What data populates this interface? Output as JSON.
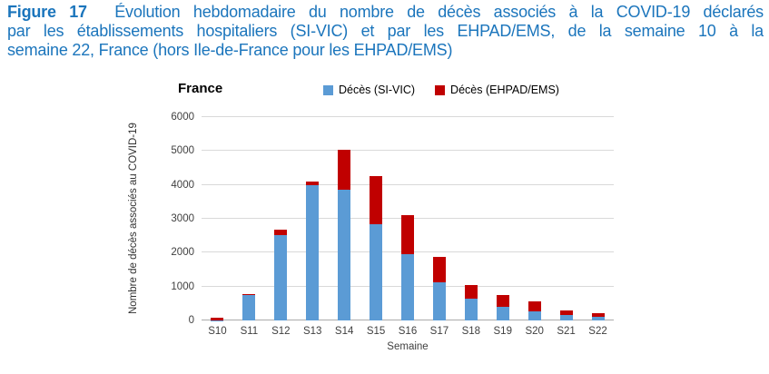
{
  "figure": {
    "label": "Figure 17",
    "line1": "Évolution hebdomadaire du nombre de décès associés à la COVID-19 déclarés",
    "line2": "par les établissements hospitaliers (SI-VIC) et par les EHPAD/EMS, de la semaine 10 à la",
    "line3": "semaine 22, France (hors Ile-de-France pour les EHPAD/EMS)"
  },
  "colors": {
    "caption_text": "#1B75BC",
    "bar_blue": "#5B9BD5",
    "bar_red": "#C00000",
    "gridline": "#D9D9D9"
  },
  "chart_data": {
    "type": "bar",
    "stacked": true,
    "title": "France",
    "xlabel": "Semaine",
    "ylabel": "Nombre de décès associés au COVID-19",
    "categories": [
      "S10",
      "S11",
      "S12",
      "S13",
      "S14",
      "S15",
      "S16",
      "S17",
      "S18",
      "S19",
      "S20",
      "S21",
      "S22"
    ],
    "series": [
      {
        "name": "Décès (SI-VIC)",
        "color": "#5B9BD5",
        "values": [
          10,
          740,
          2530,
          4000,
          3850,
          2850,
          1950,
          1120,
          650,
          400,
          280,
          170,
          120
        ]
      },
      {
        "name": "Décès (EHPAD/EMS)",
        "color": "#C00000",
        "values": [
          60,
          30,
          150,
          90,
          1180,
          1400,
          1150,
          750,
          390,
          350,
          280,
          120,
          90
        ]
      }
    ],
    "totals": [
      70,
      770,
      2680,
      4090,
      5030,
      4250,
      3100,
      1870,
      1040,
      750,
      560,
      290,
      210
    ],
    "ylim": [
      0,
      6000
    ],
    "yticks": [
      0,
      1000,
      2000,
      3000,
      4000,
      5000,
      6000
    ],
    "grid": true,
    "legend_position": "top"
  }
}
